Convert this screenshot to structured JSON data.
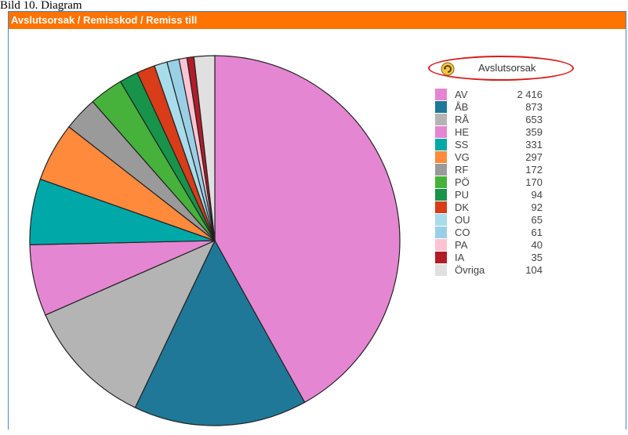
{
  "document": {
    "caption_fragment": "Bild 10. Diagram"
  },
  "panel": {
    "title": "Avslutsorsak / Remisskod / Remiss till"
  },
  "legend": {
    "title": "Avslutsorsak",
    "icon": "refresh-icon"
  },
  "colors": {
    "header": "#ff7300",
    "ellipse": "#d81c1c",
    "border": "#4a86c8"
  },
  "chart_data": {
    "type": "pie",
    "title": "",
    "legend_position": "right",
    "slices": [
      {
        "label": "AV",
        "value": 2416,
        "display": "2 416",
        "color": "#e486d2"
      },
      {
        "label": "ÅB",
        "value": 873,
        "display": "873",
        "color": "#1f7897"
      },
      {
        "label": "RÅ",
        "value": 653,
        "display": "653",
        "color": "#b4b4b4"
      },
      {
        "label": "HE",
        "value": 359,
        "display": "359",
        "color": "#e486d2"
      },
      {
        "label": "SS",
        "value": 331,
        "display": "331",
        "color": "#00a8a8"
      },
      {
        "label": "VG",
        "value": 297,
        "display": "297",
        "color": "#ff8a3c"
      },
      {
        "label": "RF",
        "value": 172,
        "display": "172",
        "color": "#9a9a9a"
      },
      {
        "label": "PÖ",
        "value": 170,
        "display": "170",
        "color": "#46b23c"
      },
      {
        "label": "PU",
        "value": 94,
        "display": "94",
        "color": "#17944a"
      },
      {
        "label": "DK",
        "value": 92,
        "display": "92",
        "color": "#d83c18"
      },
      {
        "label": "OU",
        "value": 65,
        "display": "65",
        "color": "#a8dcea"
      },
      {
        "label": "CO",
        "value": 61,
        "display": "61",
        "color": "#9ad0e6"
      },
      {
        "label": "PA",
        "value": 40,
        "display": "40",
        "color": "#ffc4d4"
      },
      {
        "label": "IA",
        "value": 35,
        "display": "35",
        "color": "#b21c28"
      },
      {
        "label": "Övriga",
        "value": 104,
        "display": "104",
        "color": "#e0e0e0"
      }
    ]
  }
}
